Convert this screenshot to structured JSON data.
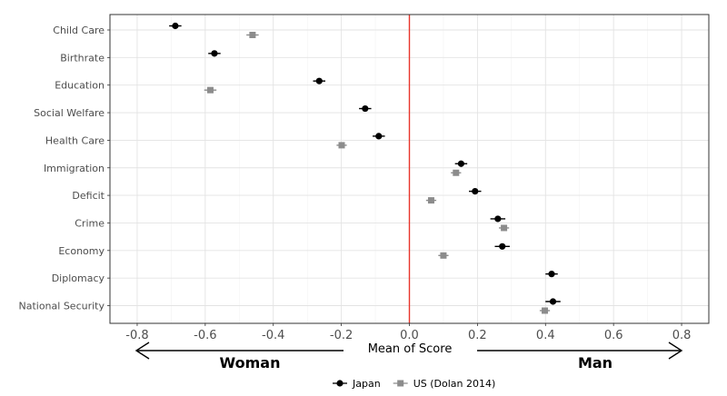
{
  "chart_data": {
    "type": "scatter",
    "variant": "dot-and-whisker",
    "categories": [
      "Child Care",
      "Birthrate",
      "Education",
      "Social Welfare",
      "Health Care",
      "Immigration",
      "Deficit",
      "Crime",
      "Economy",
      "Diplomacy",
      "National Security"
    ],
    "xlabel": "Mean of Score",
    "xlim": [
      -0.88,
      0.88
    ],
    "xticks": [
      -0.8,
      -0.6,
      -0.4,
      -0.2,
      0,
      0.2,
      0.4,
      0.6,
      0.8
    ],
    "xtick_labels": [
      "-0.8",
      "-0.6",
      "-0.4",
      "-0.2",
      "0.0",
      "0.2",
      "0.4",
      "0.6",
      "0.8"
    ],
    "reference_line": {
      "x": 0,
      "color": "#e8352b"
    },
    "grid": true,
    "legend_position": "bottom",
    "direction_labels": {
      "left": "Woman",
      "right": "Man"
    },
    "series": [
      {
        "name": "Japan",
        "marker": "circle",
        "color": "#000000",
        "values": [
          -0.688,
          -0.573,
          -0.265,
          -0.13,
          -0.09,
          0.152,
          0.193,
          0.26,
          0.273,
          0.418,
          0.422
        ],
        "ci_half_width": [
          0.018,
          0.018,
          0.018,
          0.018,
          0.018,
          0.018,
          0.018,
          0.022,
          0.022,
          0.018,
          0.022
        ]
      },
      {
        "name": "US (Dolan 2014)",
        "marker": "square",
        "color": "#8c8c8c",
        "values": [
          -0.461,
          null,
          -0.585,
          null,
          -0.199,
          0.137,
          0.064,
          0.278,
          0.1,
          null,
          0.398
        ],
        "ci_half_width": [
          0.018,
          null,
          0.018,
          null,
          0.015,
          0.015,
          0.015,
          0.015,
          0.015,
          null,
          0.015
        ]
      }
    ]
  }
}
